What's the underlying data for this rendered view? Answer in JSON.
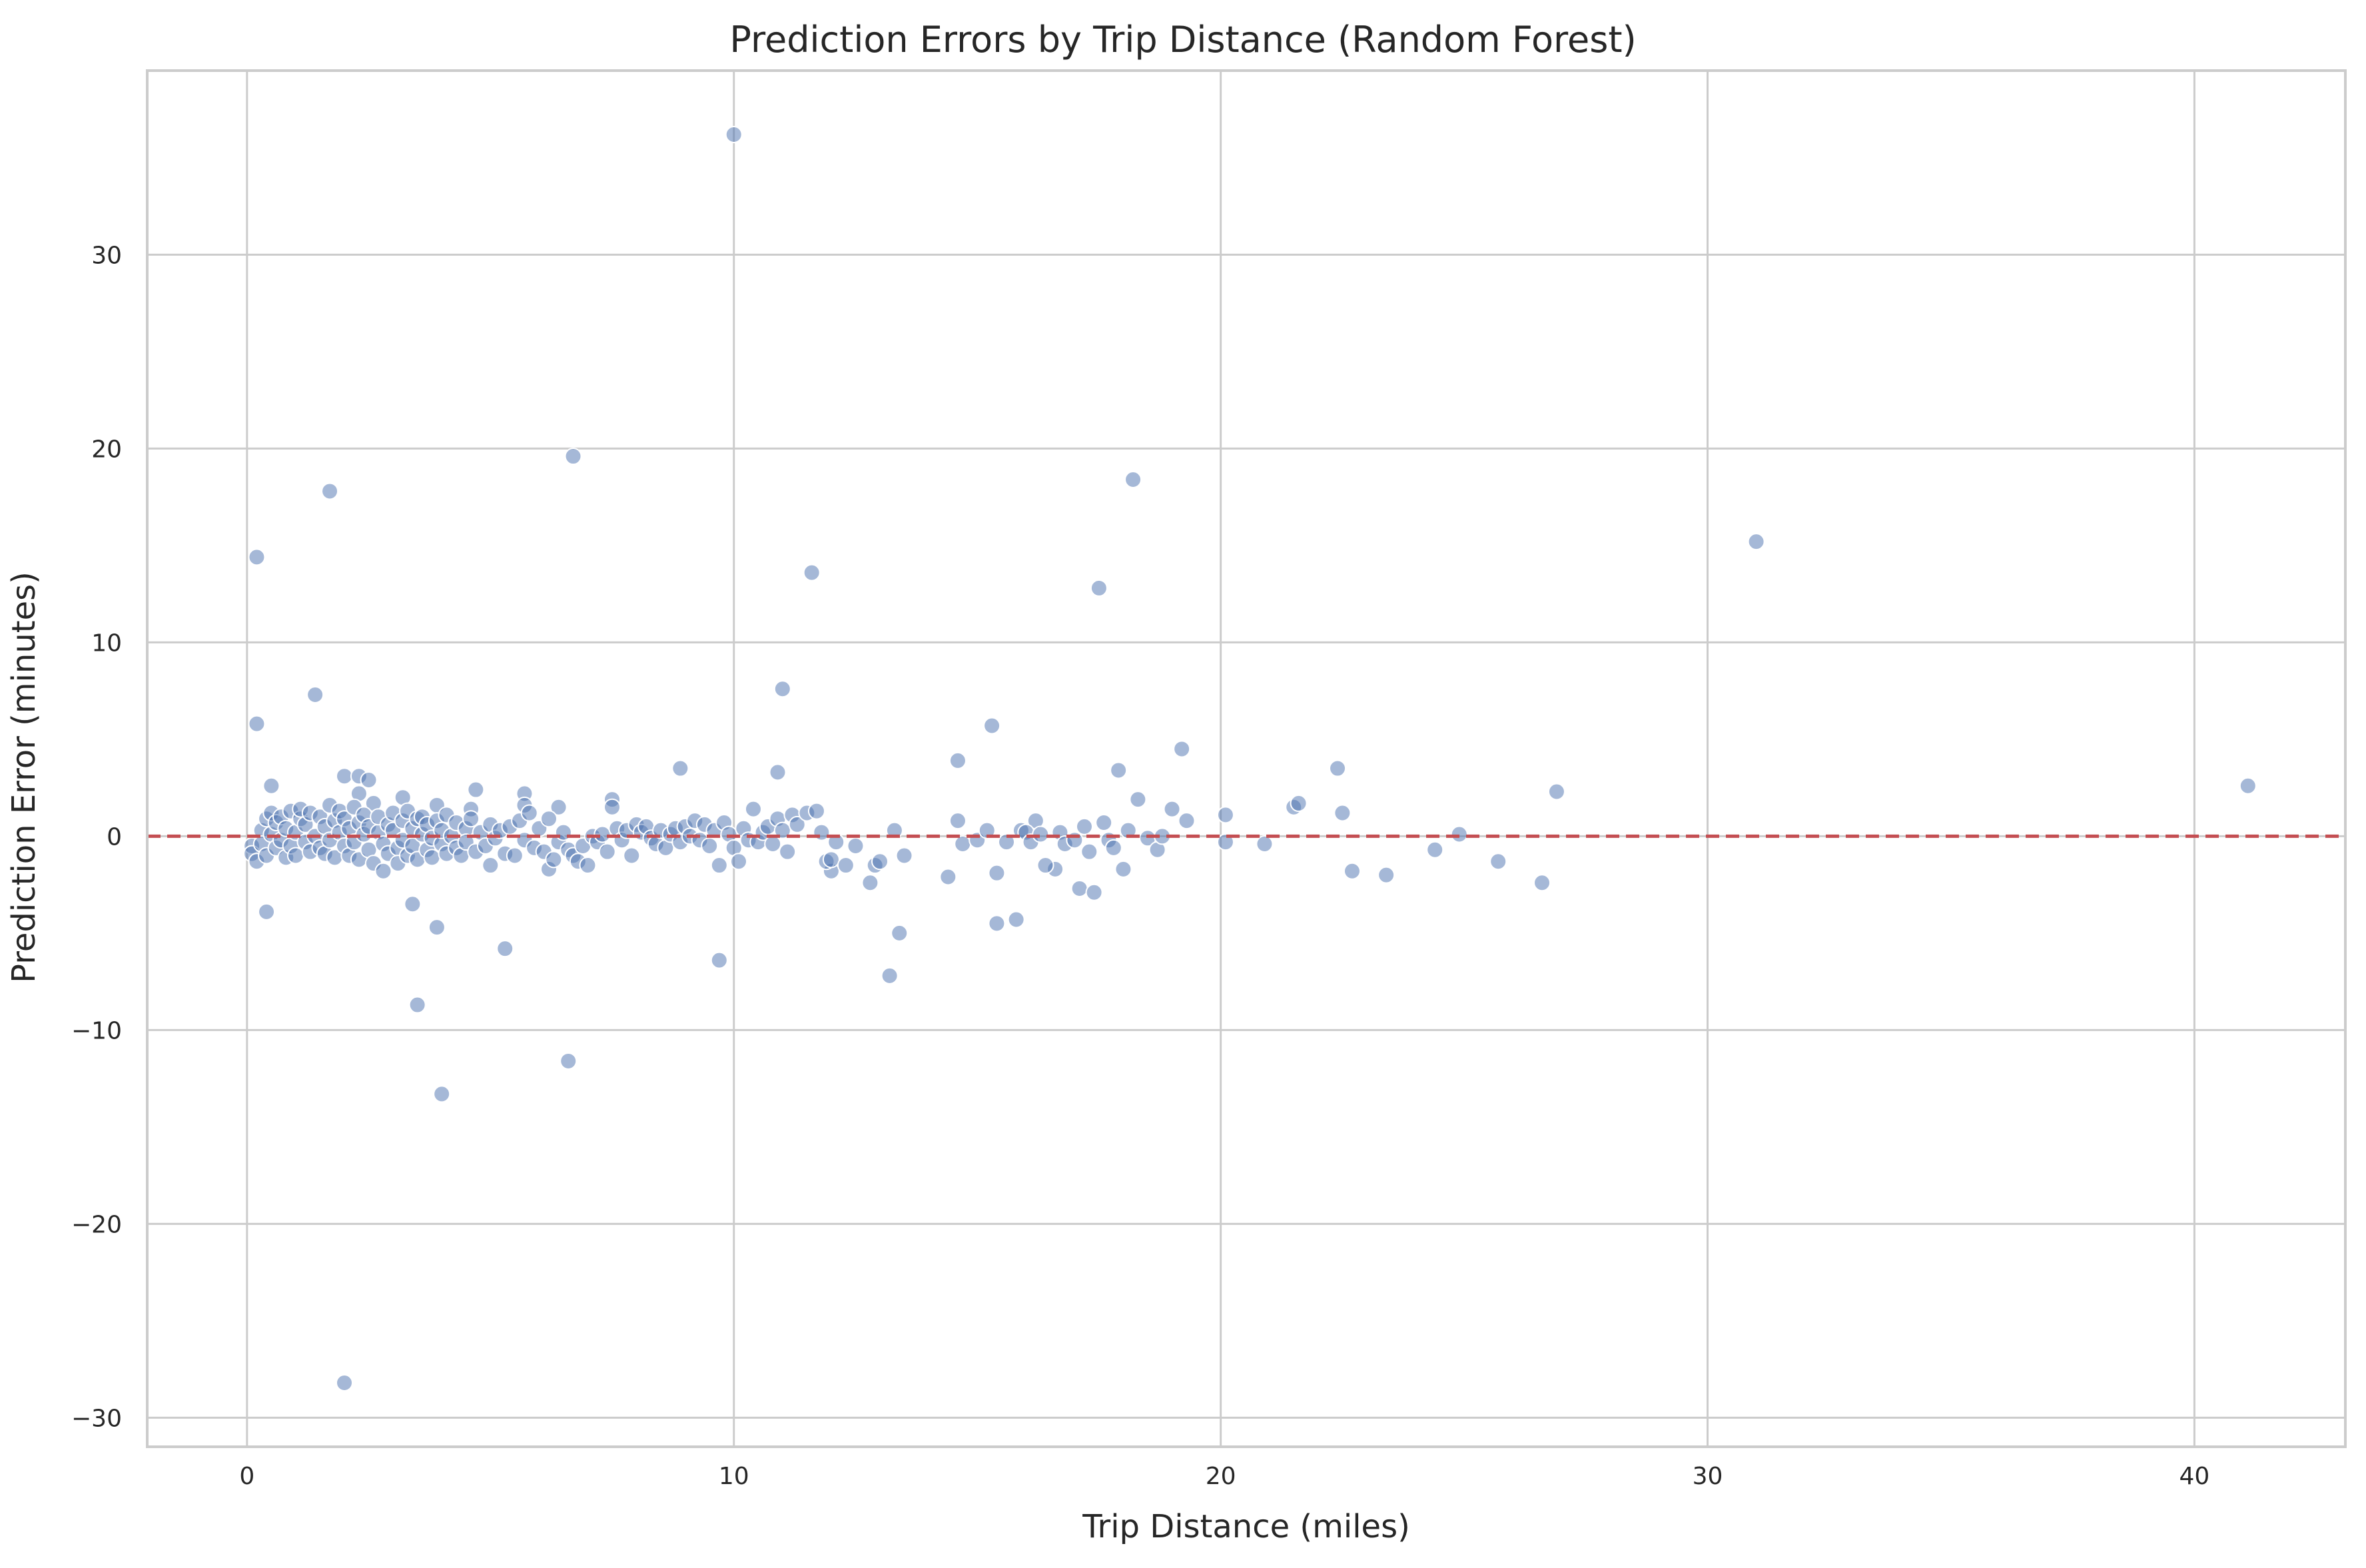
{
  "chart_data": {
    "type": "scatter",
    "title": "Prediction Errors by Trip Distance (Random Forest)",
    "xlabel": "Trip Distance (miles)",
    "ylabel": "Prediction Error (minutes)",
    "xlim": [
      -2.05,
      43.1
    ],
    "ylim": [
      -31.5,
      39.5
    ],
    "xticks": [
      0,
      10,
      20,
      30,
      40
    ],
    "yticks": [
      -30,
      -20,
      -10,
      0,
      10,
      20,
      30
    ],
    "xtick_labels": [
      "0",
      "10",
      "20",
      "30",
      "40"
    ],
    "ytick_labels": [
      "−30",
      "−20",
      "−10",
      "0",
      "10",
      "20",
      "30"
    ],
    "grid": true,
    "reference_line": {
      "y": 0,
      "style": "dashed",
      "color": "#c44e52"
    },
    "point_color": "#4c72b0",
    "series": [
      {
        "points": [
          [
            0.2,
            14.4
          ],
          [
            0.2,
            5.8
          ],
          [
            0.4,
            -3.9
          ],
          [
            0.5,
            2.6
          ],
          [
            1.4,
            7.3
          ],
          [
            1.7,
            17.8
          ],
          [
            2.0,
            -28.2
          ],
          [
            2.0,
            3.1
          ],
          [
            2.3,
            3.1
          ],
          [
            2.5,
            2.9
          ],
          [
            2.3,
            2.2
          ],
          [
            2.6,
            1.7
          ],
          [
            3.2,
            2.0
          ],
          [
            3.4,
            -3.5
          ],
          [
            3.5,
            -8.7
          ],
          [
            3.9,
            -4.7
          ],
          [
            4.0,
            -13.3
          ],
          [
            3.9,
            1.6
          ],
          [
            4.7,
            2.4
          ],
          [
            4.6,
            1.4
          ],
          [
            5.3,
            -5.8
          ],
          [
            5.7,
            2.2
          ],
          [
            5.7,
            1.6
          ],
          [
            6.4,
            1.5
          ],
          [
            6.6,
            -11.6
          ],
          [
            6.7,
            19.6
          ],
          [
            7.5,
            1.9
          ],
          [
            7.5,
            1.5
          ],
          [
            8.9,
            3.5
          ],
          [
            9.7,
            -6.4
          ],
          [
            10.0,
            36.2
          ],
          [
            10.9,
            3.3
          ],
          [
            11.0,
            7.6
          ],
          [
            10.4,
            1.4
          ],
          [
            11.6,
            13.6
          ],
          [
            12.0,
            -1.8
          ],
          [
            12.8,
            -2.4
          ],
          [
            13.2,
            -7.2
          ],
          [
            13.4,
            -5.0
          ],
          [
            14.4,
            -2.1
          ],
          [
            14.6,
            3.9
          ],
          [
            14.6,
            0.8
          ],
          [
            15.3,
            5.7
          ],
          [
            15.4,
            -4.5
          ],
          [
            15.4,
            -1.9
          ],
          [
            15.8,
            -4.3
          ],
          [
            16.2,
            0.8
          ],
          [
            16.6,
            -1.7
          ],
          [
            17.1,
            -2.7
          ],
          [
            17.4,
            -2.9
          ],
          [
            17.5,
            12.8
          ],
          [
            17.9,
            3.4
          ],
          [
            18.0,
            -1.7
          ],
          [
            18.2,
            18.4
          ],
          [
            18.3,
            1.9
          ],
          [
            19.0,
            1.4
          ],
          [
            19.2,
            4.5
          ],
          [
            19.3,
            0.8
          ],
          [
            20.1,
            1.1
          ],
          [
            20.1,
            -0.3
          ],
          [
            20.9,
            -0.4
          ],
          [
            21.5,
            1.5
          ],
          [
            21.6,
            1.7
          ],
          [
            22.4,
            3.5
          ],
          [
            22.5,
            1.2
          ],
          [
            22.7,
            -1.8
          ],
          [
            23.4,
            -2.0
          ],
          [
            24.4,
            -0.7
          ],
          [
            24.9,
            0.1
          ],
          [
            25.7,
            -1.3
          ],
          [
            26.6,
            -2.4
          ],
          [
            26.9,
            2.3
          ],
          [
            31.0,
            15.2
          ],
          [
            41.1,
            2.6
          ],
          [
            0.1,
            -0.5
          ],
          [
            0.1,
            -0.9
          ],
          [
            0.2,
            -1.3
          ],
          [
            0.3,
            0.3
          ],
          [
            0.3,
            -0.4
          ],
          [
            0.4,
            0.9
          ],
          [
            0.4,
            -1.0
          ],
          [
            0.5,
            0.1
          ],
          [
            0.5,
            1.2
          ],
          [
            0.6,
            -0.6
          ],
          [
            0.6,
            0.7
          ],
          [
            0.7,
            -0.2
          ],
          [
            0.7,
            1.0
          ],
          [
            0.8,
            -1.1
          ],
          [
            0.8,
            0.4
          ],
          [
            0.9,
            1.3
          ],
          [
            0.9,
            -0.5
          ],
          [
            1.0,
            0.2
          ],
          [
            1.0,
            -1.0
          ],
          [
            1.1,
            0.9
          ],
          [
            1.1,
            1.4
          ],
          [
            1.2,
            -0.3
          ],
          [
            1.2,
            0.6
          ],
          [
            1.3,
            -0.8
          ],
          [
            1.3,
            1.2
          ],
          [
            1.4,
            0.0
          ],
          [
            1.5,
            -0.6
          ],
          [
            1.5,
            1.0
          ],
          [
            1.6,
            0.5
          ],
          [
            1.6,
            -0.9
          ],
          [
            1.7,
            1.6
          ],
          [
            1.7,
            -0.2
          ],
          [
            1.8,
            0.8
          ],
          [
            1.8,
            -1.1
          ],
          [
            1.9,
            0.2
          ],
          [
            1.9,
            1.3
          ],
          [
            2.0,
            -0.5
          ],
          [
            2.0,
            0.9
          ],
          [
            2.1,
            -1.0
          ],
          [
            2.1,
            0.4
          ],
          [
            2.2,
            1.5
          ],
          [
            2.2,
            -0.3
          ],
          [
            2.3,
            0.7
          ],
          [
            2.3,
            -1.2
          ],
          [
            2.4,
            0.1
          ],
          [
            2.4,
            1.1
          ],
          [
            2.5,
            -0.7
          ],
          [
            2.5,
            0.5
          ],
          [
            2.6,
            -1.4
          ],
          [
            2.7,
            0.2
          ],
          [
            2.7,
            1.0
          ],
          [
            2.8,
            -0.4
          ],
          [
            2.8,
            -1.8
          ],
          [
            2.9,
            0.6
          ],
          [
            2.9,
            -0.9
          ],
          [
            3.0,
            0.3
          ],
          [
            3.0,
            1.2
          ],
          [
            3.1,
            -0.6
          ],
          [
            3.1,
            -1.4
          ],
          [
            3.2,
            0.8
          ],
          [
            3.2,
            -0.2
          ],
          [
            3.3,
            1.3
          ],
          [
            3.3,
            -1.0
          ],
          [
            3.4,
            0.4
          ],
          [
            3.4,
            -0.5
          ],
          [
            3.5,
            0.9
          ],
          [
            3.5,
            -1.2
          ],
          [
            3.6,
            0.1
          ],
          [
            3.6,
            1.0
          ],
          [
            3.7,
            -0.7
          ],
          [
            3.7,
            0.6
          ],
          [
            3.8,
            -0.1
          ],
          [
            3.8,
            -1.1
          ],
          [
            3.9,
            0.8
          ],
          [
            4.0,
            -0.4
          ],
          [
            4.0,
            0.3
          ],
          [
            4.1,
            -0.9
          ],
          [
            4.1,
            1.1
          ],
          [
            4.2,
            0.0
          ],
          [
            4.3,
            -0.6
          ],
          [
            4.3,
            0.7
          ],
          [
            4.4,
            -1.0
          ],
          [
            4.5,
            0.4
          ],
          [
            4.5,
            -0.3
          ],
          [
            4.6,
            0.9
          ],
          [
            4.7,
            -0.8
          ],
          [
            4.8,
            0.2
          ],
          [
            4.9,
            -0.5
          ],
          [
            5.0,
            0.6
          ],
          [
            5.0,
            -1.5
          ],
          [
            5.1,
            -0.1
          ],
          [
            5.2,
            0.3
          ],
          [
            5.3,
            -0.9
          ],
          [
            5.4,
            0.5
          ],
          [
            5.5,
            -1.0
          ],
          [
            5.6,
            0.8
          ],
          [
            5.7,
            -0.2
          ],
          [
            5.8,
            1.2
          ],
          [
            5.9,
            -0.6
          ],
          [
            6.0,
            0.4
          ],
          [
            6.1,
            -0.8
          ],
          [
            6.2,
            -1.7
          ],
          [
            6.2,
            0.9
          ],
          [
            6.3,
            -1.2
          ],
          [
            6.4,
            -0.3
          ],
          [
            6.5,
            0.2
          ],
          [
            6.6,
            -0.7
          ],
          [
            6.7,
            -1.0
          ],
          [
            6.8,
            -1.3
          ],
          [
            6.9,
            -0.5
          ],
          [
            7.0,
            -1.5
          ],
          [
            7.1,
            0.0
          ],
          [
            7.2,
            -0.3
          ],
          [
            7.3,
            0.1
          ],
          [
            7.4,
            -0.8
          ],
          [
            7.6,
            0.4
          ],
          [
            7.7,
            -0.2
          ],
          [
            7.8,
            0.3
          ],
          [
            7.9,
            -1.0
          ],
          [
            8.0,
            0.6
          ],
          [
            8.1,
            0.2
          ],
          [
            8.2,
            0.5
          ],
          [
            8.3,
            -0.1
          ],
          [
            8.4,
            -0.4
          ],
          [
            8.5,
            0.3
          ],
          [
            8.6,
            -0.6
          ],
          [
            8.7,
            0.1
          ],
          [
            8.8,
            0.4
          ],
          [
            8.9,
            -0.3
          ],
          [
            9.0,
            0.5
          ],
          [
            9.1,
            0.0
          ],
          [
            9.2,
            0.8
          ],
          [
            9.3,
            -0.2
          ],
          [
            9.4,
            0.6
          ],
          [
            9.5,
            -0.5
          ],
          [
            9.6,
            0.3
          ],
          [
            9.7,
            -1.5
          ],
          [
            9.8,
            0.7
          ],
          [
            9.9,
            0.1
          ],
          [
            10.0,
            -0.6
          ],
          [
            10.1,
            -1.3
          ],
          [
            10.2,
            0.4
          ],
          [
            10.3,
            -0.2
          ],
          [
            10.5,
            -0.3
          ],
          [
            10.6,
            0.2
          ],
          [
            10.7,
            0.5
          ],
          [
            10.8,
            -0.4
          ],
          [
            10.9,
            0.9
          ],
          [
            11.0,
            0.3
          ],
          [
            11.1,
            -0.8
          ],
          [
            11.2,
            1.1
          ],
          [
            11.3,
            0.6
          ],
          [
            11.5,
            1.2
          ],
          [
            11.7,
            1.3
          ],
          [
            11.8,
            0.2
          ],
          [
            11.9,
            -1.3
          ],
          [
            12.0,
            -1.2
          ],
          [
            12.1,
            -0.3
          ],
          [
            12.3,
            -1.5
          ],
          [
            12.5,
            -0.5
          ],
          [
            12.9,
            -1.5
          ],
          [
            13.0,
            -1.3
          ],
          [
            13.3,
            0.3
          ],
          [
            13.5,
            -1.0
          ],
          [
            14.7,
            -0.4
          ],
          [
            15.0,
            -0.2
          ],
          [
            15.2,
            0.3
          ],
          [
            15.6,
            -0.3
          ],
          [
            15.9,
            0.3
          ],
          [
            16.0,
            0.2
          ],
          [
            16.1,
            -0.3
          ],
          [
            16.3,
            0.1
          ],
          [
            16.4,
            -1.5
          ],
          [
            16.7,
            0.2
          ],
          [
            16.8,
            -0.4
          ],
          [
            17.0,
            -0.2
          ],
          [
            17.2,
            0.5
          ],
          [
            17.3,
            -0.8
          ],
          [
            17.6,
            0.7
          ],
          [
            17.7,
            -0.2
          ],
          [
            17.8,
            -0.6
          ],
          [
            18.1,
            0.3
          ],
          [
            18.5,
            -0.1
          ],
          [
            18.7,
            -0.7
          ],
          [
            18.8,
            0.0
          ]
        ]
      }
    ]
  }
}
